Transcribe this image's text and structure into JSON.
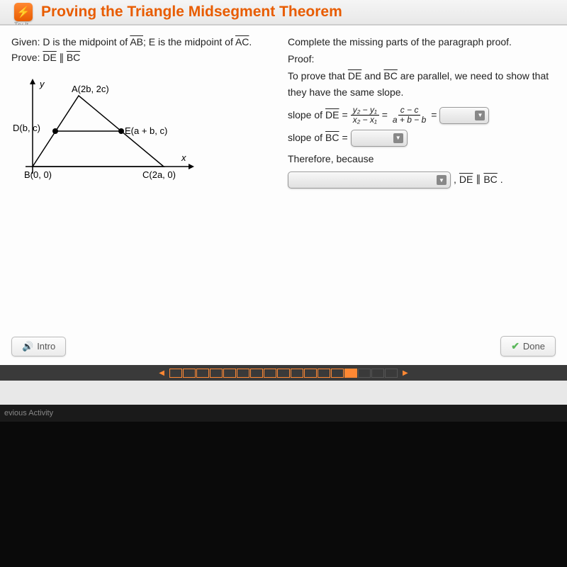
{
  "header": {
    "try_it_label": "Try It",
    "title": "Proving the Triangle Midsegment Theorem"
  },
  "left": {
    "given_label": "Given: D is the midpoint of ",
    "given_seg1": "AB",
    "given_mid": "; E is the midpoint of ",
    "given_seg2": "AC",
    "given_end": ".",
    "prove_label": "Prove: ",
    "prove_seg1": "DE",
    "prove_parallel": " ∥ ",
    "prove_seg2": "BC",
    "diagram": {
      "y_label": "y",
      "x_label": "x",
      "A": "A(2b, 2c)",
      "D": "D(b, c)",
      "E": "E(a + b, c)",
      "B": "B(0, 0)",
      "C": "C(2a, 0)"
    }
  },
  "right": {
    "instr": "Complete the missing parts of the paragraph proof.",
    "proof_label": "Proof:",
    "intro1": "To prove that ",
    "intro_seg1": "DE",
    "intro_and": " and ",
    "intro_seg2": "BC",
    "intro2": " are parallel, we need to show that they have the same slope.",
    "slope_de_label": "slope of ",
    "de": "DE",
    "eq": " = ",
    "frac1_num": "y₂ − y₁",
    "frac1_den": "x₂ − x₁",
    "frac2_num": "c − c",
    "frac2_den": "a + b − b",
    "slope_bc_label": "slope of ",
    "bc": "BC",
    "therefore": "Therefore, because",
    "final_tail1": ", ",
    "final_de": "DE",
    "final_par": " ∥ ",
    "final_bc": "BC",
    "final_period": "."
  },
  "footer": {
    "intro": "Intro",
    "done": "Done"
  },
  "below": {
    "prev": "evious Activity"
  },
  "progress": {
    "total": 17,
    "current": 14
  }
}
